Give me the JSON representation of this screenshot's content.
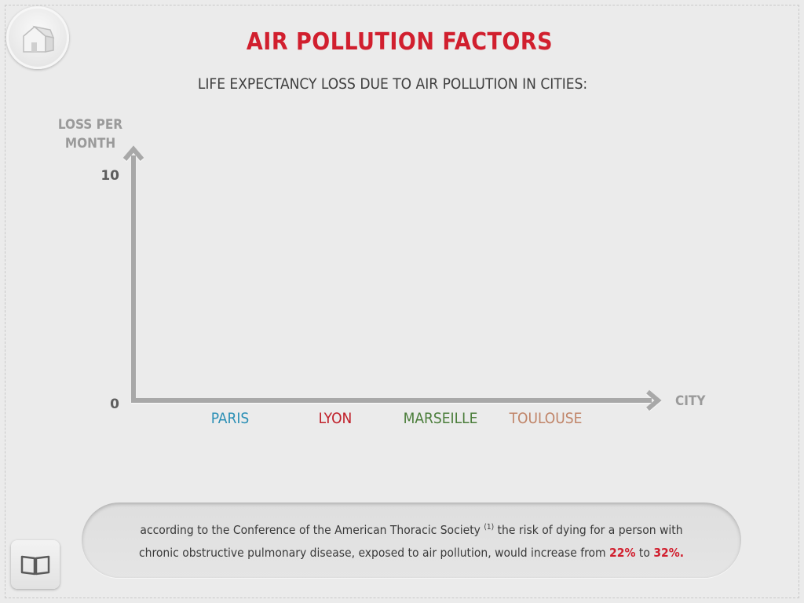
{
  "header": {
    "title": "AIR POLLUTION FACTORS",
    "subtitle": "LIFE EXPECTANCY LOSS DUE TO AIR POLLUTION IN CITIES:"
  },
  "icons": {
    "home": "home-icon",
    "book": "book-icon"
  },
  "colors": {
    "accent": "#d11f2e",
    "axis": "#a8a8a8"
  },
  "chart_data": {
    "type": "bar",
    "title": "",
    "ylabel_line1": "LOSS PER",
    "ylabel_line2": "MONTH",
    "xlabel": "CITY",
    "ylim": [
      0,
      10
    ],
    "yticks": [
      "0",
      "10"
    ],
    "categories": [
      "PARIS",
      "LYON",
      "MARSEILLE",
      "TOULOUSE"
    ],
    "category_colors": [
      "#2b8fb5",
      "#c0202a",
      "#4a7d3a",
      "#c08468"
    ],
    "values": [
      null,
      null,
      null,
      null
    ],
    "grid": false
  },
  "footnote": {
    "line1_a": "according to the Conference of the American Thoracic Society",
    "ref": "(1)",
    "line1_b": "the risk of dying for a person with",
    "line2_a": "chronic obstructive pulmonary disease, exposed to air pollution, would increase from",
    "from_pct": "22%",
    "to_word": "to",
    "to_pct": "32%."
  }
}
